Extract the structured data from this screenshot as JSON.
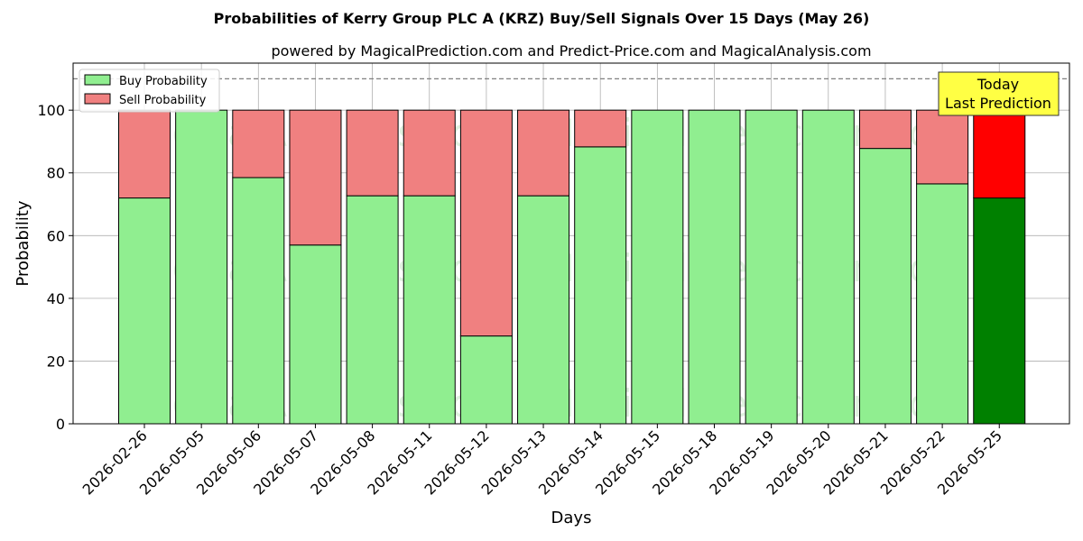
{
  "chart_data": {
    "type": "bar",
    "stacked": true,
    "title": "Probabilities of Kerry Group PLC A (KRZ) Buy/Sell Signals Over 15 Days (May 26)",
    "subtitle": "powered by MagicalPrediction.com and Predict-Price.com and MagicalAnalysis.com",
    "xlabel": "Days",
    "ylabel": "Probability",
    "ylim": [
      0,
      115
    ],
    "yticks": [
      0,
      20,
      40,
      60,
      80,
      100
    ],
    "grid": true,
    "legend_position": "top-left",
    "reference_line": 110,
    "categories": [
      "2026-02-26",
      "2026-05-05",
      "2026-05-06",
      "2026-05-07",
      "2026-05-08",
      "2026-05-11",
      "2026-05-12",
      "2026-05-13",
      "2026-05-14",
      "2026-05-15",
      "2026-05-18",
      "2026-05-19",
      "2026-05-20",
      "2026-05-21",
      "2026-05-22",
      "2026-05-25"
    ],
    "series": [
      {
        "name": "Buy Probability",
        "color": "#90ee90",
        "last_color": "#008000",
        "values": [
          72,
          100,
          78.5,
          57,
          72.7,
          72.7,
          28,
          72.7,
          88.3,
          100,
          100,
          100,
          100,
          87.8,
          76.5,
          72
        ]
      },
      {
        "name": "Sell Probability",
        "color": "#f08080",
        "last_color": "#ff0000",
        "values": [
          28,
          0,
          21.5,
          43,
          27.3,
          27.3,
          72,
          27.3,
          11.7,
          0,
          0,
          0,
          0,
          12.2,
          23.5,
          28
        ]
      }
    ],
    "annotation": {
      "line1": "Today",
      "line2": "Last Prediction",
      "color": "#ffff44"
    },
    "watermarks": [
      "MagicalAnalysis.com",
      "MagicalPrediction.com"
    ]
  }
}
